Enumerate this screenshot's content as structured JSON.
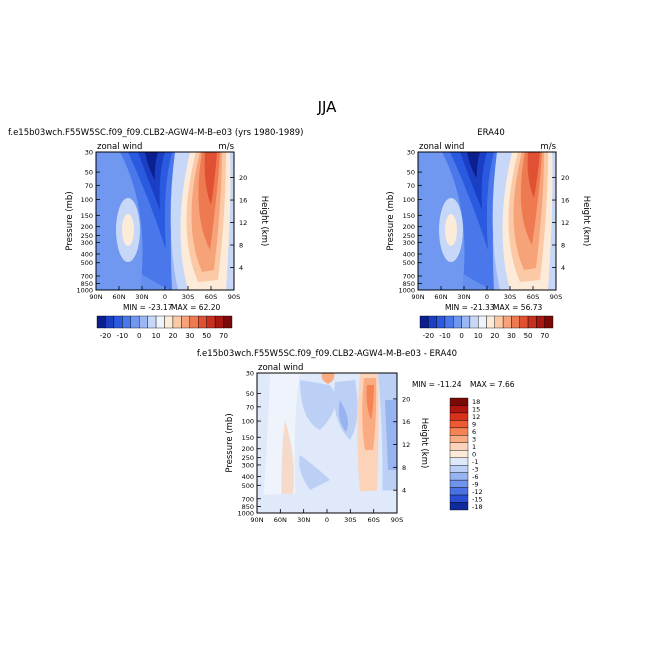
{
  "season_title": "JJA",
  "pressure_ticks": [
    30,
    50,
    70,
    100,
    150,
    200,
    250,
    300,
    400,
    500,
    700,
    850,
    1000
  ],
  "height_ticks": [
    20,
    16,
    12,
    8,
    4
  ],
  "lat_ticks": [
    "90N",
    "60N",
    "30N",
    "0",
    "30S",
    "60S",
    "90S"
  ],
  "chart_data": [
    {
      "type": "heatmap",
      "title": "f.e15b03wch.F55W5SC.f09_f09.CLB2-AGW4-M-B-e03 (yrs 1980-1989)",
      "field_label": "zonal wind",
      "units": "m/s",
      "xlabel": "",
      "ylabel": "Pressure (mb)",
      "ylabel_right": "Height (km)",
      "stats": {
        "min_label": "MIN = -23.17",
        "max_label": "MAX = 62.20",
        "min": -23.17,
        "max": 62.2
      },
      "colorbar": {
        "labels": [
          "-20",
          "-10",
          "0",
          "10",
          "20",
          "30",
          "50",
          "70"
        ],
        "levels": [
          -25,
          -20,
          -15,
          -10,
          -5,
          0,
          5,
          10,
          15,
          20,
          25,
          30,
          40,
          50,
          60,
          70
        ]
      }
    },
    {
      "type": "heatmap",
      "title": "ERA40",
      "field_label": "zonal wind",
      "units": "m/s",
      "xlabel": "",
      "ylabel": "Pressure (mb)",
      "ylabel_right": "Height (km)",
      "stats": {
        "min_label": "MIN = -21.33",
        "max_label": "MAX = 56.73",
        "min": -21.33,
        "max": 56.73
      },
      "colorbar": {
        "labels": [
          "-20",
          "-10",
          "0",
          "10",
          "20",
          "30",
          "50",
          "70"
        ],
        "levels": [
          -25,
          -20,
          -15,
          -10,
          -5,
          0,
          5,
          10,
          15,
          20,
          25,
          30,
          40,
          50,
          60,
          70
        ]
      }
    },
    {
      "type": "heatmap",
      "title": "f.e15b03wch.F55W5SC.f09_f09.CLB2-AGW4-M-B-e03 - ERA40",
      "field_label": "zonal wind",
      "units": "",
      "xlabel": "",
      "ylabel": "Pressure (mb)",
      "ylabel_right": "Height (km)",
      "stats": {
        "min_label": "MIN = -11.24",
        "max_label": "MAX =   7.66",
        "min": -11.24,
        "max": 7.66
      },
      "colorbar": {
        "labels": [
          "18",
          "15",
          "12",
          "9",
          "6",
          "3",
          "1",
          "0",
          "-1",
          "-3",
          "-6",
          "-9",
          "-12",
          "-15",
          "-18"
        ],
        "levels": [
          18,
          15,
          12,
          9,
          6,
          3,
          1,
          0,
          -1,
          -3,
          -6,
          -9,
          -12,
          -15,
          -18
        ]
      }
    }
  ],
  "colors": {
    "full_field_scale": [
      "#0b1f8f",
      "#1a3fc4",
      "#2a5ae0",
      "#4a78eb",
      "#7098f0",
      "#9cb8f4",
      "#c7d7f8",
      "#eef3fc",
      "#fdebd9",
      "#fbc9a6",
      "#f7a37a",
      "#ee7a52",
      "#e05134",
      "#c72f1f",
      "#a81712",
      "#7a0a08"
    ],
    "diff_scale_top_to_bottom": [
      "#7a0a08",
      "#b0150f",
      "#d9321c",
      "#ee5a32",
      "#f58356",
      "#f9ab82",
      "#fcd3b8",
      "#fdebd9",
      "#dfe9fa",
      "#bcd0f6",
      "#97b4f1",
      "#6f94eb",
      "#4a72e3",
      "#2a4fd4",
      "#102a9c"
    ]
  }
}
